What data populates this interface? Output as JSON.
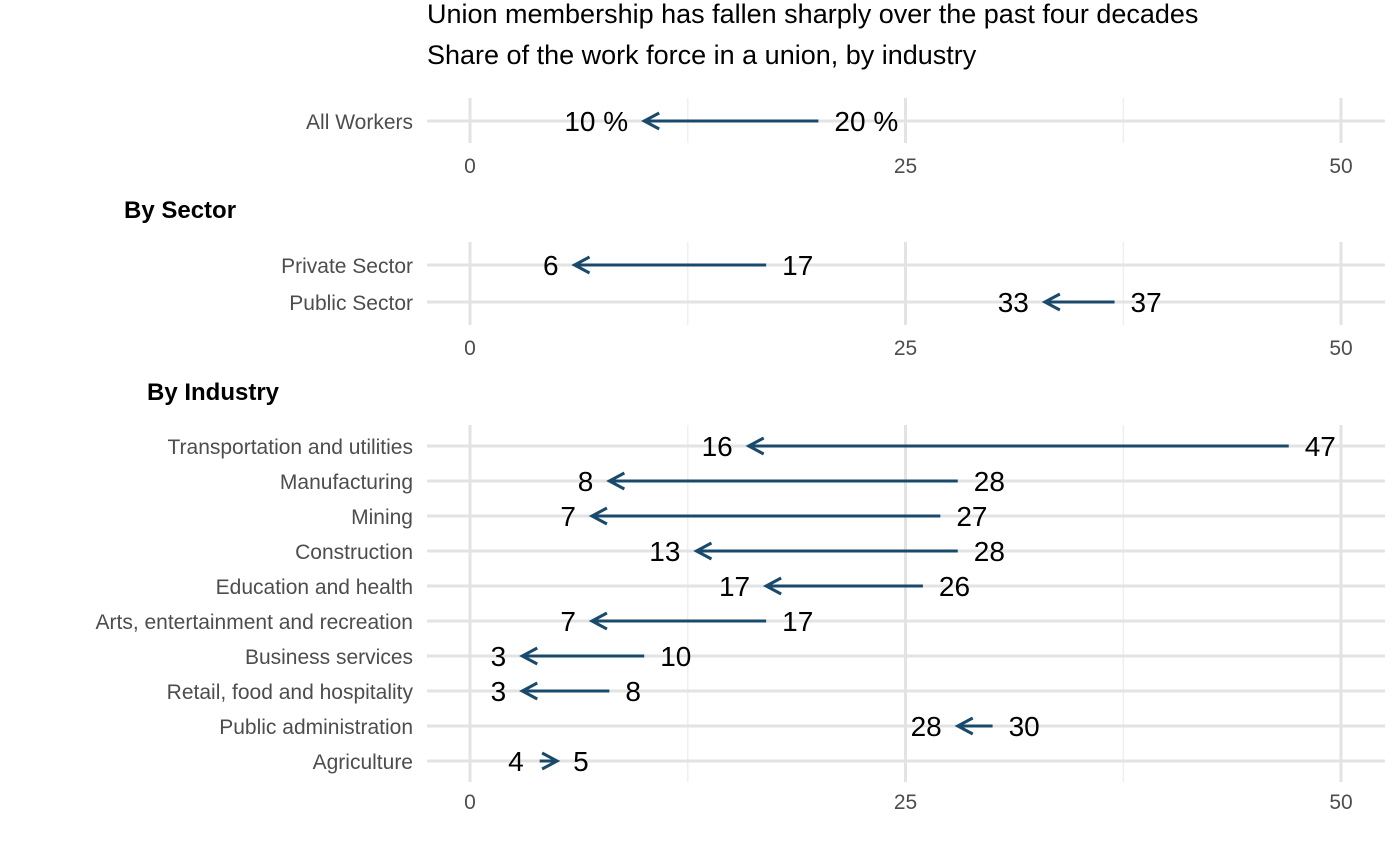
{
  "chart_data": {
    "type": "dumbbell-arrow",
    "title": "Union membership has fallen sharply over the past four decades",
    "subtitle": "Share of the work force in a union, by industry",
    "arrow_color": "#1a4a6b",
    "xlim": [
      0,
      50
    ],
    "x_ticks": [
      "0",
      "25",
      "50"
    ],
    "panels": [
      {
        "heading": "",
        "categories": [
          {
            "name": "All Workers",
            "from": 20,
            "to": 10,
            "from_label": "20 %",
            "to_label": "10 %"
          }
        ]
      },
      {
        "heading": "By Sector",
        "categories": [
          {
            "name": "Private Sector",
            "from": 17,
            "to": 6,
            "from_label": "17",
            "to_label": "6"
          },
          {
            "name": "Public Sector",
            "from": 37,
            "to": 33,
            "from_label": "37",
            "to_label": "33"
          }
        ]
      },
      {
        "heading": "By Industry",
        "categories": [
          {
            "name": "Transportation and utilities",
            "from": 47,
            "to": 16,
            "from_label": "47",
            "to_label": "16"
          },
          {
            "name": "Manufacturing",
            "from": 28,
            "to": 8,
            "from_label": "28",
            "to_label": "8"
          },
          {
            "name": "Mining",
            "from": 27,
            "to": 7,
            "from_label": "27",
            "to_label": "7"
          },
          {
            "name": "Construction",
            "from": 28,
            "to": 13,
            "from_label": "28",
            "to_label": "13"
          },
          {
            "name": "Education and health",
            "from": 26,
            "to": 17,
            "from_label": "26",
            "to_label": "17"
          },
          {
            "name": "Arts, entertainment and recreation",
            "from": 17,
            "to": 7,
            "from_label": "17",
            "to_label": "7"
          },
          {
            "name": "Business services",
            "from": 10,
            "to": 3,
            "from_label": "10",
            "to_label": "3"
          },
          {
            "name": "Retail, food and hospitality",
            "from": 8,
            "to": 3,
            "from_label": "8",
            "to_label": "3"
          },
          {
            "name": "Public administration",
            "from": 30,
            "to": 28,
            "from_label": "30",
            "to_label": "28"
          },
          {
            "name": "Agriculture",
            "from": 4,
            "to": 5,
            "from_label": "4",
            "to_label": "5"
          }
        ]
      }
    ]
  }
}
